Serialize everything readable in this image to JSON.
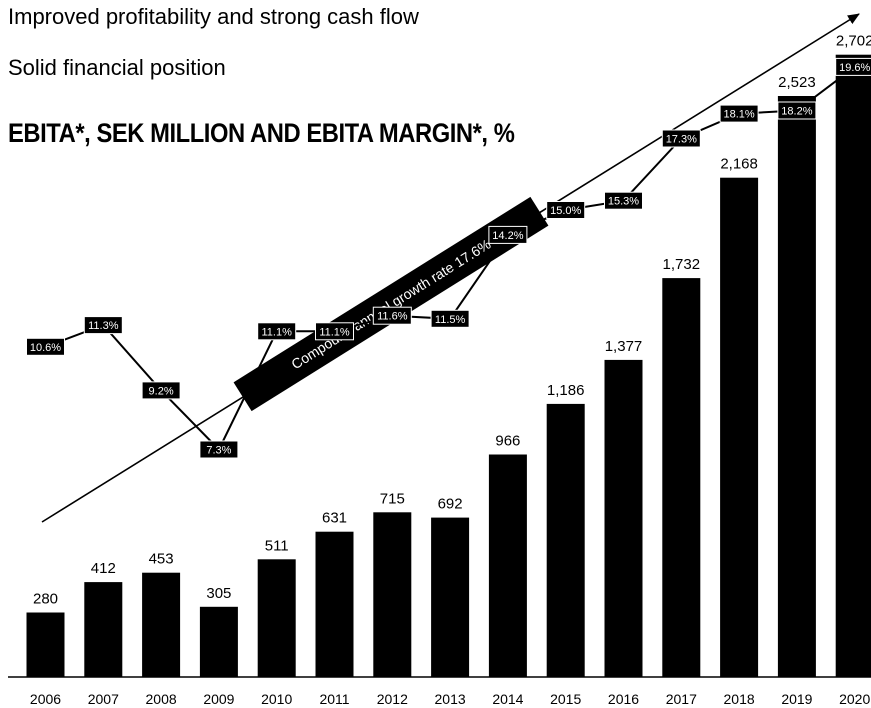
{
  "headline": "Improved profitability and strong cash flow",
  "subheadline": "Solid financial position",
  "chart_title": "EBITA*, SEK MILLION AND EBITA MARGIN*, %",
  "chart_data": {
    "type": "bar",
    "title": "EBITA*, SEK MILLION AND EBITA MARGIN*, %",
    "categories": [
      "2006",
      "2007",
      "2008",
      "2009",
      "2010",
      "2011",
      "2012",
      "2013",
      "2014",
      "2015",
      "2016",
      "2017",
      "2018",
      "2019",
      "2020"
    ],
    "series": [
      {
        "type": "bar",
        "values": [
          280,
          412,
          453,
          305,
          511,
          631,
          715,
          692,
          966,
          1186,
          1377,
          1732,
          2168,
          2523,
          2702
        ],
        "labels": [
          "280",
          "412",
          "453",
          "305",
          "511",
          "631",
          "715",
          "692",
          "966",
          "1,186",
          "1,377",
          "1,732",
          "2,168",
          "2,523",
          "2,702"
        ]
      },
      {
        "type": "line",
        "values": [
          10.6,
          11.3,
          9.2,
          7.3,
          11.1,
          11.1,
          11.6,
          11.5,
          14.2,
          15.0,
          15.3,
          17.3,
          18.1,
          18.2,
          19.6
        ],
        "labels": [
          "10.6%",
          "11.3%",
          "9.2%",
          "7.3%",
          "11.1%",
          "11.1%",
          "11.6%",
          "11.5%",
          "14.2%",
          "15.0%",
          "15.3%",
          "17.3%",
          "18.1%",
          "18.2%",
          "19.6%"
        ]
      }
    ],
    "annotation": "Compound annual growth rate 17.6%",
    "grid": false,
    "bar_color": "#000000",
    "label_box_color": "#000000"
  }
}
